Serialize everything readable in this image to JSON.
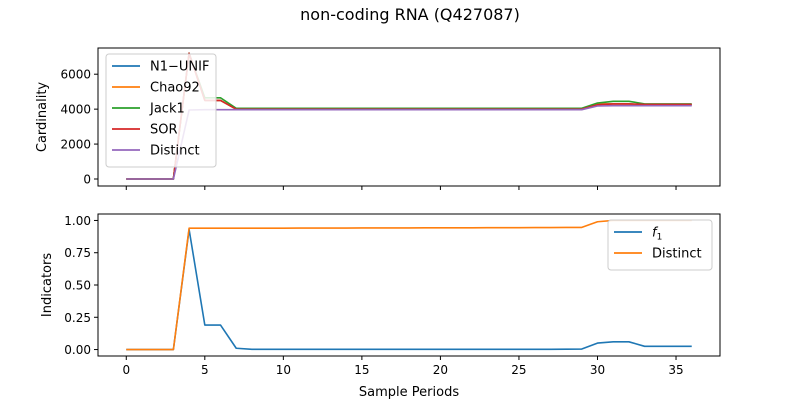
{
  "figure": {
    "title": "non-coding RNA (Q427087)"
  },
  "chart_data": [
    {
      "type": "line",
      "ylabel": "Cardinality",
      "xlim": [
        -1.8,
        37.8
      ],
      "ylim": [
        -400,
        7500
      ],
      "yticks": [
        0,
        2000,
        4000,
        6000
      ],
      "ytick_labels": [
        "0",
        "2000",
        "4000",
        "6000"
      ],
      "grid": false,
      "legend_position": "upper-left",
      "x": [
        0,
        1,
        2,
        3,
        4,
        5,
        6,
        7,
        8,
        9,
        10,
        11,
        12,
        13,
        14,
        15,
        16,
        17,
        18,
        19,
        20,
        21,
        22,
        23,
        24,
        25,
        26,
        27,
        28,
        29,
        30,
        31,
        32,
        33,
        34,
        35,
        36
      ],
      "series": [
        {
          "name": "N1−UNIF",
          "color": "#1f77b4",
          "values": [
            0,
            0,
            0,
            0,
            7200,
            4500,
            4500,
            4000,
            4000,
            4000,
            4000,
            4000,
            4000,
            4000,
            4000,
            4000,
            4000,
            4000,
            4000,
            4000,
            4000,
            4000,
            4000,
            4000,
            4000,
            4000,
            4000,
            4000,
            4000,
            4000,
            4300,
            4300,
            4300,
            4250,
            4250,
            4250,
            4250
          ]
        },
        {
          "name": "Chao92",
          "color": "#ff7f0e",
          "values": [
            0,
            0,
            0,
            0,
            7200,
            4500,
            4500,
            4000,
            4000,
            4000,
            4000,
            4000,
            4000,
            4000,
            4000,
            4000,
            4000,
            4000,
            4000,
            4000,
            4000,
            4000,
            4000,
            4000,
            4000,
            4000,
            4000,
            4000,
            4000,
            4000,
            4300,
            4300,
            4300,
            4250,
            4250,
            4250,
            4250
          ]
        },
        {
          "name": "Jack1",
          "color": "#2ca02c",
          "values": [
            0,
            0,
            0,
            0,
            7200,
            4650,
            4650,
            4050,
            4050,
            4050,
            4050,
            4050,
            4050,
            4050,
            4050,
            4050,
            4050,
            4050,
            4050,
            4050,
            4050,
            4050,
            4050,
            4050,
            4050,
            4050,
            4050,
            4050,
            4050,
            4050,
            4350,
            4450,
            4450,
            4300,
            4300,
            4300,
            4300
          ]
        },
        {
          "name": "SOR",
          "color": "#d62728",
          "values": [
            0,
            0,
            0,
            0,
            7200,
            4500,
            4500,
            4000,
            4000,
            4000,
            4000,
            4000,
            4000,
            4000,
            4000,
            4000,
            4000,
            4000,
            4000,
            4000,
            4000,
            4000,
            4000,
            4000,
            4000,
            4000,
            4000,
            4000,
            4000,
            4000,
            4250,
            4300,
            4300,
            4270,
            4270,
            4270,
            4270
          ]
        },
        {
          "name": "Distinct",
          "color": "#9467bd",
          "values": [
            0,
            0,
            0,
            0,
            3950,
            3970,
            3970,
            3970,
            3970,
            3970,
            3970,
            3970,
            3970,
            3970,
            3970,
            3970,
            3970,
            3970,
            3970,
            3970,
            3970,
            3970,
            3970,
            3970,
            3970,
            3970,
            3970,
            3970,
            3970,
            3970,
            4180,
            4200,
            4200,
            4200,
            4200,
            4200,
            4200
          ]
        }
      ]
    },
    {
      "type": "line",
      "ylabel": "Indicators",
      "xlabel": "Sample Periods",
      "xlim": [
        -1.8,
        37.8
      ],
      "ylim": [
        -0.05,
        1.05
      ],
      "xticks": [
        0,
        5,
        10,
        15,
        20,
        25,
        30,
        35
      ],
      "xtick_labels": [
        "0",
        "5",
        "10",
        "15",
        "20",
        "25",
        "30",
        "35"
      ],
      "yticks": [
        0,
        0.25,
        0.5,
        0.75,
        1.0
      ],
      "ytick_labels": [
        "0.00",
        "0.25",
        "0.50",
        "0.75",
        "1.00"
      ],
      "grid": false,
      "legend_position": "upper-right",
      "x": [
        0,
        1,
        2,
        3,
        4,
        5,
        6,
        7,
        8,
        9,
        10,
        11,
        12,
        13,
        14,
        15,
        16,
        17,
        18,
        19,
        20,
        21,
        22,
        23,
        24,
        25,
        26,
        27,
        28,
        29,
        30,
        31,
        32,
        33,
        34,
        35,
        36
      ],
      "series": [
        {
          "name": "f",
          "name_subscript": "1",
          "color": "#1f77b4",
          "values": [
            0,
            0,
            0,
            0,
            0.93,
            0.19,
            0.19,
            0.01,
            0.002,
            0.002,
            0.002,
            0.002,
            0.002,
            0.002,
            0.002,
            0.002,
            0.002,
            0.002,
            0.002,
            0.002,
            0.002,
            0.002,
            0.002,
            0.002,
            0.002,
            0.002,
            0.002,
            0.002,
            0.003,
            0.004,
            0.05,
            0.06,
            0.06,
            0.025,
            0.025,
            0.025,
            0.025
          ]
        },
        {
          "name": "Distinct",
          "color": "#ff7f0e",
          "values": [
            0,
            0,
            0,
            0,
            0.94,
            0.94,
            0.94,
            0.94,
            0.94,
            0.94,
            0.94,
            0.941,
            0.941,
            0.941,
            0.941,
            0.942,
            0.942,
            0.942,
            0.942,
            0.943,
            0.943,
            0.943,
            0.943,
            0.944,
            0.944,
            0.944,
            0.945,
            0.945,
            0.946,
            0.946,
            0.99,
            1.0,
            1.0,
            1.0,
            1.0,
            1.0,
            1.0
          ]
        }
      ]
    }
  ]
}
